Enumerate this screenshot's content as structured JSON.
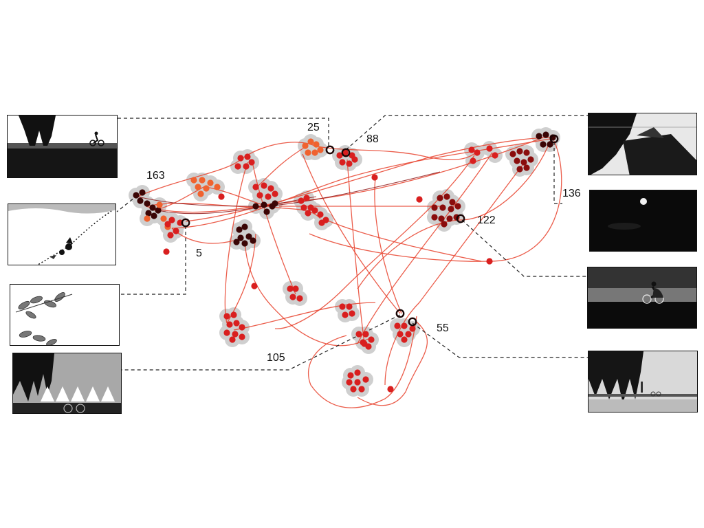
{
  "labels": {
    "f25": "25",
    "f88": "88",
    "f163": "163",
    "f5": "5",
    "f136": "136",
    "f122": "122",
    "f55": "55",
    "f105": "105"
  },
  "colors": {
    "trajectory": "#e8412b",
    "cluster_halo": "#cfcfcf",
    "highlight_ring": "#1a0505",
    "connector": "#222222",
    "dot_light": "#f0622f",
    "dot_mid": "#d91f1f",
    "dot_dark": "#8a0d0d",
    "dot_darkest": "#3a0505"
  },
  "frames": [
    {
      "id": "frame-1",
      "icon": "cyclist-under-trees"
    },
    {
      "id": "frame-2",
      "icon": "cyclist-on-hill"
    },
    {
      "id": "frame-3",
      "icon": "leaves-sketch"
    },
    {
      "id": "frame-4",
      "icon": "crowd-with-bicycles"
    },
    {
      "id": "frame-5",
      "icon": "boat-sail-dark"
    },
    {
      "id": "frame-6",
      "icon": "moon-night"
    },
    {
      "id": "frame-7",
      "icon": "cyclist-at-dusk"
    },
    {
      "id": "frame-8",
      "icon": "figures-under-trees"
    }
  ]
}
